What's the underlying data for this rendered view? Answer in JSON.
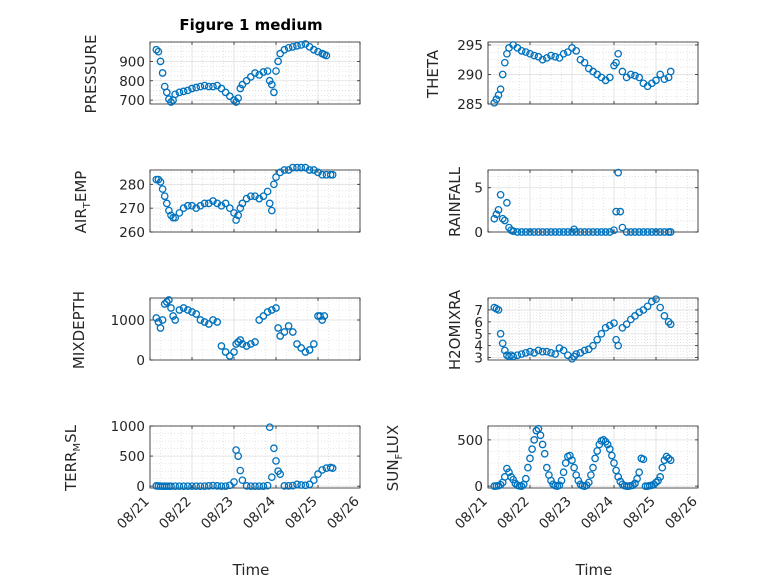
{
  "figure": {
    "title": "Figure 1 medium",
    "xlabel": "Time",
    "xticks": [
      "08/21",
      "08/22",
      "08/23",
      "08/24",
      "08/25",
      "08/26"
    ],
    "marker_color": "#0072BD",
    "grid_color": "#dfdfdf"
  },
  "chart_data": [
    {
      "type": "scatter",
      "title": "Figure 1 medium",
      "xlabel": "",
      "xlim": [
        0,
        5
      ],
      "ylabel": "PRESSURE",
      "ylim": [
        680,
        1000
      ],
      "yticks": [
        700,
        800,
        900
      ],
      "grid": true,
      "x": [
        0.15,
        0.2,
        0.25,
        0.3,
        0.35,
        0.4,
        0.45,
        0.5,
        0.55,
        0.6,
        0.7,
        0.8,
        0.9,
        1.0,
        1.1,
        1.2,
        1.3,
        1.4,
        1.5,
        1.6,
        1.7,
        1.8,
        1.9,
        2.0,
        2.05,
        2.1,
        2.15,
        2.2,
        2.3,
        2.4,
        2.5,
        2.6,
        2.7,
        2.8,
        2.85,
        2.9,
        2.95,
        3.0,
        3.05,
        3.1,
        3.2,
        3.3,
        3.4,
        3.5,
        3.6,
        3.7,
        3.8,
        3.9,
        4.0,
        4.1,
        4.15,
        4.2
      ],
      "y": [
        960,
        950,
        900,
        840,
        770,
        740,
        705,
        690,
        700,
        730,
        740,
        745,
        750,
        760,
        765,
        770,
        775,
        770,
        770,
        775,
        760,
        740,
        720,
        700,
        690,
        710,
        760,
        780,
        800,
        820,
        840,
        830,
        845,
        850,
        800,
        780,
        740,
        850,
        900,
        940,
        960,
        970,
        975,
        980,
        985,
        990,
        975,
        960,
        950,
        940,
        935,
        930
      ]
    },
    {
      "type": "scatter",
      "xlabel": "",
      "xlim": [
        0,
        5
      ],
      "ylabel": "THETA",
      "ylim": [
        285,
        295.5
      ],
      "yticks": [
        285,
        290,
        295
      ],
      "grid": true,
      "x": [
        0.15,
        0.2,
        0.25,
        0.3,
        0.35,
        0.4,
        0.45,
        0.5,
        0.6,
        0.7,
        0.8,
        0.9,
        1.0,
        1.1,
        1.2,
        1.3,
        1.4,
        1.5,
        1.6,
        1.7,
        1.8,
        1.9,
        2.0,
        2.1,
        2.2,
        2.3,
        2.4,
        2.5,
        2.6,
        2.7,
        2.8,
        2.9,
        3.0,
        3.05,
        3.1,
        3.2,
        3.3,
        3.4,
        3.5,
        3.6,
        3.7,
        3.8,
        3.9,
        4.0,
        4.1,
        4.2,
        4.3,
        4.35
      ],
      "y": [
        285.2,
        285.8,
        286.5,
        287.5,
        290,
        292,
        293.5,
        294.5,
        295,
        294.5,
        294,
        293.8,
        293.5,
        293.2,
        293,
        292.5,
        292.8,
        293.2,
        293,
        292.8,
        293.5,
        293.8,
        294.5,
        294,
        292.5,
        292,
        291,
        290.5,
        290,
        289.5,
        289,
        289.5,
        291.5,
        292,
        293.5,
        290.5,
        289.5,
        290,
        289.8,
        289.5,
        288.5,
        288,
        288.5,
        289,
        290,
        289.2,
        289.5,
        290.5
      ]
    },
    {
      "type": "scatter",
      "xlabel": "",
      "xlim": [
        0,
        5
      ],
      "ylabel": "AIR_TEMP",
      "ylim": [
        260,
        286
      ],
      "yticks": [
        260,
        270,
        280
      ],
      "grid": true,
      "x": [
        0.15,
        0.2,
        0.25,
        0.3,
        0.35,
        0.4,
        0.45,
        0.5,
        0.55,
        0.6,
        0.7,
        0.8,
        0.9,
        1.0,
        1.1,
        1.2,
        1.3,
        1.4,
        1.5,
        1.6,
        1.7,
        1.8,
        1.9,
        2.0,
        2.05,
        2.1,
        2.15,
        2.2,
        2.3,
        2.4,
        2.5,
        2.6,
        2.7,
        2.8,
        2.85,
        2.9,
        2.95,
        3.0,
        3.1,
        3.2,
        3.3,
        3.4,
        3.5,
        3.6,
        3.7,
        3.8,
        3.9,
        4.0,
        4.1,
        4.2,
        4.3,
        4.35
      ],
      "y": [
        282,
        282,
        281,
        278,
        275,
        272,
        269,
        267,
        266,
        266,
        268,
        270,
        271,
        271,
        270,
        271,
        272,
        272,
        273,
        272,
        271,
        272,
        270,
        268,
        265,
        267,
        270,
        272,
        274,
        275,
        275,
        274,
        275,
        277,
        272,
        269,
        280,
        283,
        285,
        286,
        286,
        287,
        287,
        287,
        287,
        286,
        286,
        285,
        284,
        284,
        284,
        284
      ]
    },
    {
      "type": "scatter",
      "xlabel": "",
      "xlim": [
        0,
        5
      ],
      "ylabel": "RAINFALL",
      "ylim": [
        0,
        7
      ],
      "yticks": [
        0,
        5
      ],
      "grid": true,
      "x": [
        0.15,
        0.2,
        0.25,
        0.3,
        0.35,
        0.4,
        0.45,
        0.5,
        0.55,
        0.6,
        0.7,
        0.8,
        0.9,
        1.0,
        1.1,
        1.2,
        1.3,
        1.4,
        1.5,
        1.6,
        1.7,
        1.8,
        1.9,
        2.0,
        2.05,
        2.1,
        2.2,
        2.3,
        2.4,
        2.5,
        2.6,
        2.7,
        2.8,
        2.9,
        3.0,
        3.05,
        3.1,
        3.15,
        3.2,
        3.3,
        3.4,
        3.5,
        3.6,
        3.7,
        3.8,
        3.9,
        4.0,
        4.1,
        4.2,
        4.3,
        4.35
      ],
      "y": [
        1.5,
        2.0,
        2.5,
        4.2,
        1.5,
        1.3,
        3.3,
        0.5,
        0.2,
        0.1,
        0,
        0,
        0,
        0,
        0,
        0,
        0,
        0,
        0,
        0,
        0,
        0,
        0,
        0,
        0.3,
        0,
        0,
        0,
        0,
        0,
        0,
        0,
        0,
        0,
        0.2,
        2.3,
        6.7,
        2.3,
        0.5,
        0,
        0,
        0,
        0,
        0,
        0,
        0,
        0,
        0,
        0,
        0,
        0
      ]
    },
    {
      "type": "scatter",
      "xlabel": "",
      "xlim": [
        0,
        5
      ],
      "ylabel": "MIXDEPTH",
      "ylim": [
        0,
        1550
      ],
      "yticks": [
        0,
        1000
      ],
      "grid": true,
      "x": [
        0.15,
        0.2,
        0.25,
        0.3,
        0.35,
        0.4,
        0.45,
        0.5,
        0.55,
        0.6,
        0.7,
        0.8,
        0.9,
        1.0,
        1.1,
        1.2,
        1.3,
        1.4,
        1.5,
        1.6,
        1.7,
        1.8,
        1.9,
        2.0,
        2.05,
        2.1,
        2.15,
        2.2,
        2.3,
        2.4,
        2.5,
        2.6,
        2.7,
        2.8,
        2.9,
        3.0,
        3.05,
        3.1,
        3.2,
        3.3,
        3.4,
        3.5,
        3.6,
        3.7,
        3.8,
        3.9,
        4.0,
        4.05,
        4.1,
        4.15
      ],
      "y": [
        1050,
        950,
        800,
        1000,
        1400,
        1450,
        1500,
        1300,
        1100,
        1000,
        1250,
        1300,
        1250,
        1200,
        1150,
        1000,
        950,
        900,
        1000,
        950,
        350,
        200,
        100,
        200,
        400,
        450,
        500,
        400,
        350,
        400,
        450,
        1000,
        1100,
        1200,
        1250,
        1300,
        800,
        600,
        700,
        850,
        700,
        400,
        300,
        200,
        250,
        400,
        1100,
        1100,
        1000,
        1100
      ]
    },
    {
      "type": "scatter",
      "xlabel": "",
      "xlim": [
        0,
        5
      ],
      "ylabel": "H2OMIXRA",
      "ylim": [
        2.8,
        8
      ],
      "yticks": [
        3,
        4,
        5,
        6,
        7
      ],
      "grid": true,
      "x": [
        0.15,
        0.2,
        0.25,
        0.3,
        0.35,
        0.4,
        0.45,
        0.5,
        0.55,
        0.6,
        0.7,
        0.8,
        0.9,
        1.0,
        1.1,
        1.2,
        1.3,
        1.4,
        1.5,
        1.6,
        1.7,
        1.8,
        1.9,
        2.0,
        2.05,
        2.1,
        2.2,
        2.3,
        2.4,
        2.5,
        2.6,
        2.7,
        2.8,
        2.9,
        3.0,
        3.05,
        3.1,
        3.2,
        3.3,
        3.4,
        3.5,
        3.6,
        3.7,
        3.8,
        3.9,
        4.0,
        4.1,
        4.2,
        4.3,
        4.35
      ],
      "y": [
        7.2,
        7.1,
        7.0,
        5.0,
        4.2,
        3.6,
        3.2,
        3.1,
        3.2,
        3.1,
        3.2,
        3.3,
        3.4,
        3.5,
        3.4,
        3.6,
        3.5,
        3.5,
        3.4,
        3.3,
        3.8,
        3.6,
        3.2,
        2.9,
        3.1,
        3.3,
        3.4,
        3.6,
        3.7,
        4.0,
        4.5,
        5.0,
        5.5,
        5.7,
        5.9,
        4.5,
        4.0,
        5.5,
        5.8,
        6.2,
        6.5,
        6.8,
        7.0,
        7.3,
        7.7,
        7.9,
        7.2,
        6.5,
        6.0,
        5.8
      ]
    },
    {
      "type": "scatter",
      "xlabel": "Time",
      "xlim": [
        0,
        5
      ],
      "ylabel": "TERR_MSL",
      "ylim": [
        -30,
        1000
      ],
      "yticks": [
        0,
        500,
        1000
      ],
      "grid": true,
      "x": [
        0.15,
        0.2,
        0.25,
        0.3,
        0.35,
        0.4,
        0.45,
        0.5,
        0.6,
        0.7,
        0.8,
        0.9,
        1.0,
        1.1,
        1.2,
        1.3,
        1.4,
        1.5,
        1.6,
        1.7,
        1.8,
        1.9,
        2.0,
        2.05,
        2.1,
        2.15,
        2.2,
        2.3,
        2.4,
        2.5,
        2.6,
        2.7,
        2.8,
        2.85,
        2.9,
        2.95,
        3.0,
        3.05,
        3.1,
        3.2,
        3.3,
        3.4,
        3.5,
        3.6,
        3.7,
        3.8,
        3.9,
        4.0,
        4.1,
        4.2,
        4.3,
        4.35
      ],
      "y": [
        5,
        3,
        2,
        0,
        0,
        0,
        0,
        0,
        0,
        0,
        0,
        0,
        0,
        0,
        0,
        0,
        5,
        10,
        5,
        0,
        0,
        15,
        70,
        600,
        500,
        260,
        100,
        5,
        0,
        0,
        0,
        0,
        10,
        980,
        150,
        630,
        420,
        250,
        200,
        5,
        5,
        10,
        30,
        20,
        15,
        30,
        100,
        200,
        270,
        300,
        310,
        300
      ]
    },
    {
      "type": "scatter",
      "xlabel": "Time",
      "xlim": [
        0,
        5
      ],
      "ylabel": "SUN_FLUX",
      "ylim": [
        -20,
        650
      ],
      "yticks": [
        0,
        500
      ],
      "grid": true,
      "x": [
        0.15,
        0.2,
        0.25,
        0.3,
        0.35,
        0.4,
        0.45,
        0.5,
        0.55,
        0.6,
        0.65,
        0.7,
        0.75,
        0.8,
        0.85,
        0.9,
        0.95,
        1.0,
        1.05,
        1.1,
        1.15,
        1.2,
        1.25,
        1.3,
        1.35,
        1.4,
        1.45,
        1.5,
        1.55,
        1.6,
        1.65,
        1.7,
        1.75,
        1.8,
        1.85,
        1.9,
        1.95,
        2.0,
        2.05,
        2.1,
        2.15,
        2.2,
        2.25,
        2.3,
        2.35,
        2.4,
        2.45,
        2.5,
        2.55,
        2.6,
        2.65,
        2.7,
        2.75,
        2.8,
        2.85,
        2.9,
        2.95,
        3.0,
        3.05,
        3.1,
        3.15,
        3.2,
        3.25,
        3.3,
        3.35,
        3.4,
        3.45,
        3.5,
        3.55,
        3.6,
        3.65,
        3.7,
        3.75,
        3.8,
        3.85,
        3.9,
        3.95,
        4.0,
        4.05,
        4.1,
        4.15,
        4.2,
        4.25,
        4.3,
        4.35
      ],
      "y": [
        0,
        2,
        5,
        15,
        40,
        100,
        190,
        150,
        100,
        70,
        30,
        10,
        3,
        0,
        20,
        80,
        200,
        300,
        400,
        500,
        600,
        620,
        550,
        450,
        350,
        200,
        120,
        60,
        20,
        5,
        0,
        10,
        60,
        150,
        250,
        320,
        330,
        280,
        200,
        120,
        60,
        20,
        5,
        0,
        10,
        40,
        120,
        200,
        300,
        380,
        450,
        490,
        500,
        480,
        450,
        400,
        330,
        250,
        170,
        100,
        50,
        20,
        5,
        0,
        0,
        5,
        10,
        30,
        80,
        150,
        300,
        290,
        0,
        0,
        5,
        10,
        20,
        40,
        60,
        100,
        200,
        280,
        320,
        300,
        280
      ]
    }
  ]
}
